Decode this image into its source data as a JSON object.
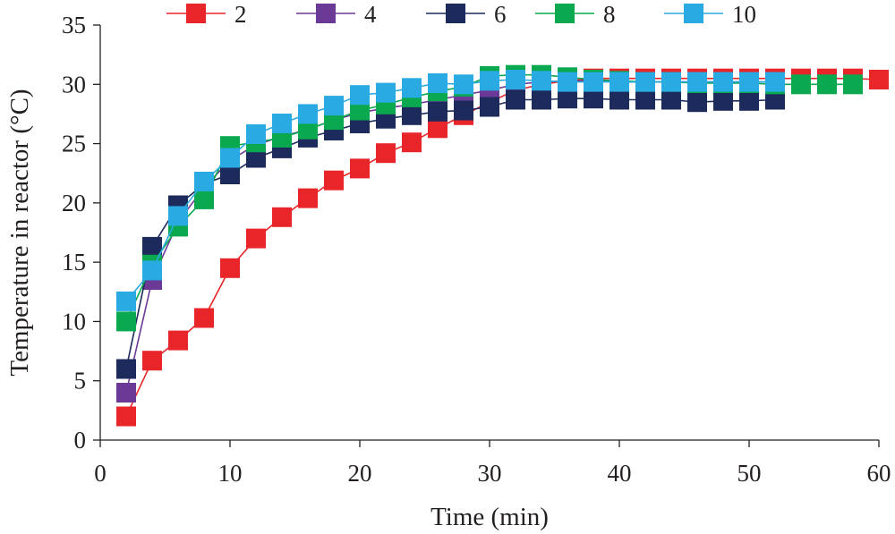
{
  "chart_data": {
    "type": "line",
    "title": "",
    "xlabel": "Time (min)",
    "ylabel": "Temperature in reactor (°C)",
    "xlim": [
      0,
      60
    ],
    "ylim": [
      0,
      35
    ],
    "xticks": [
      "0",
      "10",
      "20",
      "30",
      "40",
      "50",
      "60"
    ],
    "yticks": [
      "0",
      "5",
      "10",
      "15",
      "20",
      "25",
      "30",
      "35"
    ],
    "grid": false,
    "legend_position": "top",
    "series": [
      {
        "name": "2",
        "color": "#e8262a",
        "x": [
          2,
          4,
          6,
          8,
          10,
          12,
          14,
          16,
          18,
          20,
          22,
          24,
          26,
          28,
          30,
          32,
          34,
          36,
          38,
          40,
          42,
          44,
          46,
          48,
          50,
          52,
          54,
          56,
          58,
          60
        ],
        "values": [
          2.0,
          6.7,
          8.4,
          10.3,
          14.5,
          17.0,
          18.8,
          20.4,
          21.9,
          22.9,
          24.2,
          25.1,
          26.3,
          27.4,
          28.5,
          29.5,
          30.0,
          30.3,
          30.5,
          30.5,
          30.5,
          30.5,
          30.5,
          30.5,
          30.5,
          30.5,
          30.5,
          30.5,
          30.5,
          30.4
        ]
      },
      {
        "name": "4",
        "color": "#6b3a96",
        "x": [
          2,
          4,
          6,
          8,
          10,
          12,
          14,
          16,
          18,
          20,
          22,
          24,
          26,
          28,
          30,
          32,
          34,
          36,
          38,
          40,
          42,
          44,
          46,
          48,
          50,
          52
        ],
        "values": [
          4.0,
          13.5,
          18.4,
          21.3,
          23.6,
          24.9,
          25.6,
          26.2,
          27.0,
          27.6,
          28.0,
          28.3,
          28.7,
          29.1,
          29.5,
          30.0,
          30.2,
          30.3,
          30.3,
          30.2,
          30.2,
          30.2,
          30.2,
          30.2,
          30.2,
          30.2
        ]
      },
      {
        "name": "6",
        "color": "#1c2a5c",
        "x": [
          2,
          4,
          6,
          8,
          10,
          12,
          14,
          16,
          18,
          20,
          22,
          24,
          26,
          28,
          30,
          32,
          34,
          36,
          38,
          40,
          42,
          44,
          46,
          48,
          50,
          52
        ],
        "values": [
          6.0,
          16.3,
          19.8,
          21.6,
          22.4,
          23.8,
          24.6,
          25.5,
          26.1,
          26.7,
          27.1,
          27.4,
          27.7,
          27.8,
          28.1,
          28.7,
          28.7,
          28.8,
          28.8,
          28.7,
          28.7,
          28.7,
          28.5,
          28.6,
          28.6,
          28.7
        ]
      },
      {
        "name": "8",
        "color": "#0aa84f",
        "x": [
          2,
          4,
          6,
          8,
          10,
          12,
          14,
          16,
          18,
          20,
          22,
          24,
          26,
          28,
          30,
          32,
          34,
          36,
          38,
          40,
          42,
          44,
          46,
          48,
          50,
          52,
          54,
          56,
          58
        ],
        "values": [
          10.0,
          14.8,
          18.0,
          20.3,
          24.8,
          25.1,
          25.5,
          26.2,
          27.0,
          27.8,
          28.3,
          28.9,
          29.4,
          29.8,
          30.7,
          30.8,
          30.8,
          30.6,
          30.4,
          30.3,
          30.2,
          30.2,
          30.1,
          30.1,
          30.1,
          30.0,
          30.0,
          30.0,
          30.0
        ]
      },
      {
        "name": "10",
        "color": "#2aaae2",
        "x": [
          2,
          4,
          6,
          8,
          10,
          12,
          14,
          16,
          18,
          20,
          22,
          24,
          26,
          28,
          30,
          32,
          34,
          36,
          38,
          40,
          42,
          44,
          46,
          48,
          50,
          52
        ],
        "values": [
          11.7,
          14.3,
          18.9,
          21.8,
          23.8,
          25.8,
          26.7,
          27.5,
          28.2,
          29.1,
          29.3,
          29.7,
          30.1,
          30.0,
          30.3,
          30.4,
          30.3,
          30.2,
          30.2,
          30.2,
          30.2,
          30.2,
          30.2,
          30.2,
          30.2,
          30.2
        ]
      }
    ]
  }
}
